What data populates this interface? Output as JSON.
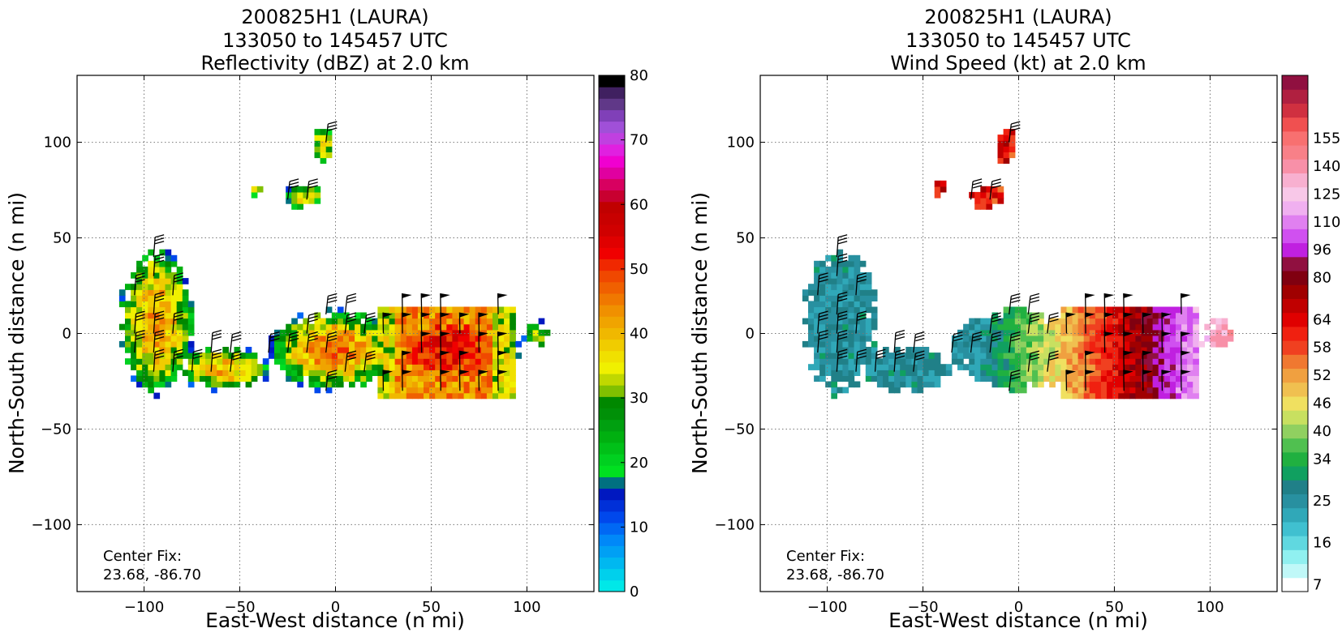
{
  "chart_data": [
    {
      "type": "heatmap",
      "title_lines": [
        "200825H1 (LAURA)",
        "133050 to 145457 UTC",
        "Reflectivity (dBZ) at 2.0 km"
      ],
      "xlabel": "East-West distance (n mi)",
      "ylabel": "North-South distance (n mi)",
      "xlim": [
        -135,
        135
      ],
      "ylim": [
        -135,
        135
      ],
      "xticks": [
        -100,
        -50,
        0,
        50,
        100
      ],
      "yticks": [
        -100,
        -50,
        0,
        50,
        100
      ],
      "xtick_labels": [
        "−100",
        "−50",
        "0",
        "50",
        "100"
      ],
      "ytick_labels": [
        "−100",
        "−50",
        "0",
        "50",
        "100"
      ],
      "grid": true,
      "annotation_lines": [
        "Center Fix:",
        "23.68, -86.70"
      ],
      "colorbar": {
        "min": 0,
        "max": 80,
        "ticks": [
          0,
          10,
          20,
          30,
          40,
          50,
          60,
          70,
          80
        ],
        "tick_labels": [
          "0",
          "10",
          "20",
          "30",
          "40",
          "50",
          "60",
          "70",
          "80"
        ],
        "colors": [
          "#00e8e8",
          "#00d0ec",
          "#00b8f0",
          "#00a0f4",
          "#0088f8",
          "#0068f4",
          "#0048ec",
          "#0030d8",
          "#0018c0",
          "#007080",
          "#00e020",
          "#00d020",
          "#00c018",
          "#00b010",
          "#00a010",
          "#009008",
          "#008800",
          "#80c000",
          "#c0d800",
          "#f0f000",
          "#f0e000",
          "#f0cc00",
          "#f0b800",
          "#f0a400",
          "#f09000",
          "#f07800",
          "#f06000",
          "#f04800",
          "#f02800",
          "#f00000",
          "#e00000",
          "#d00000",
          "#c80000",
          "#c00000",
          "#c80030",
          "#d80060",
          "#e000a0",
          "#f000d0",
          "#e020e0",
          "#c040e0",
          "#a050d8",
          "#8040b8",
          "#603888",
          "#402060",
          "#000000"
        ]
      },
      "barbs_present": true
    },
    {
      "type": "heatmap",
      "title_lines": [
        "200825H1 (LAURA)",
        "133050 to 145457 UTC",
        "Wind Speed (kt) at 2.0 km"
      ],
      "xlabel": "East-West distance (n mi)",
      "ylabel": "North-South distance (n mi)",
      "xlim": [
        -135,
        135
      ],
      "ylim": [
        -135,
        135
      ],
      "xticks": [
        -100,
        -50,
        0,
        50,
        100
      ],
      "yticks": [
        -100,
        -50,
        0,
        50,
        100
      ],
      "xtick_labels": [
        "−100",
        "−50",
        "0",
        "50",
        "100"
      ],
      "ytick_labels": [
        "−100",
        "−50",
        "0",
        "50",
        "100"
      ],
      "grid": true,
      "annotation_lines": [
        "Center Fix:",
        "23.68, -86.70"
      ],
      "colorbar": {
        "tick_labels": [
          "7",
          "16",
          "25",
          "34",
          "40",
          "46",
          "52",
          "58",
          "64",
          "80",
          "96",
          "110",
          "125",
          "140",
          "155"
        ],
        "tick_bins": [
          0,
          3,
          6,
          9,
          11,
          13,
          15,
          17,
          19,
          22,
          24,
          26,
          28,
          30,
          32
        ],
        "colors": [
          "#ffffff",
          "#c0f8f8",
          "#90f0f0",
          "#60d8e0",
          "#40c0d0",
          "#30a8b8",
          "#2890a0",
          "#208088",
          "#10a060",
          "#20b040",
          "#50c050",
          "#90d060",
          "#c8e060",
          "#f0e060",
          "#f0c050",
          "#f0a040",
          "#f07830",
          "#f04020",
          "#f02010",
          "#e00000",
          "#c00000",
          "#a00000",
          "#800010",
          "#901040",
          "#c020e0",
          "#d050f0",
          "#e080f0",
          "#f0b0f0",
          "#f8c8e8",
          "#f8b0d0",
          "#f890a8",
          "#f88088",
          "#f87070",
          "#f05050",
          "#d03040",
          "#b02040",
          "#901040"
        ]
      },
      "barbs_present": true
    }
  ]
}
